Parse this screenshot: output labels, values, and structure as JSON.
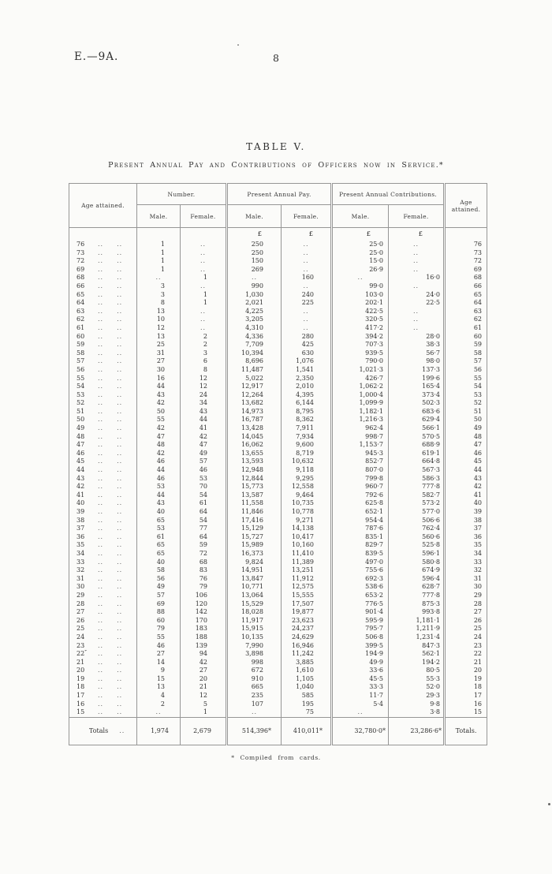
{
  "colors": {
    "paper": "#fbfbf9",
    "ink": "#2f2f2f",
    "border": "#969696"
  },
  "page": {
    "doc_ref": "E.—9A.",
    "page_number": "8"
  },
  "table": {
    "title": "TABLE V.",
    "subtitle": "Present Annual Pay and Contributions of Officers now in Service.*",
    "col_headers": {
      "age_attained_left": "Age attained.",
      "number": "Number.",
      "pay": "Present Annual Pay.",
      "contributions": "Present Annual Contributions.",
      "age_attained_right": "Age attained.",
      "male": "Male.",
      "female": "Female."
    },
    "currency_symbol": "£",
    "rows": [
      [
        "76",
        "1",
        "..",
        "250",
        "..",
        "25·0",
        "..",
        "76"
      ],
      [
        "73",
        "1",
        "..",
        "250",
        "..",
        "25·0",
        "..",
        "73"
      ],
      [
        "72",
        "1",
        "..",
        "150",
        "..",
        "15·0",
        "..",
        "72"
      ],
      [
        "69",
        "1",
        "..",
        "269",
        "..",
        "26·9",
        "..",
        "69"
      ],
      [
        "68",
        "..",
        "1",
        "..",
        "160",
        "..",
        "16·0",
        "68"
      ],
      [
        "66",
        "3",
        "..",
        "990",
        "..",
        "99·0",
        "..",
        "66"
      ],
      [
        "65",
        "3",
        "1",
        "1,030",
        "240",
        "103·0",
        "24·0",
        "65"
      ],
      [
        "64",
        "8",
        "1",
        "2,021",
        "225",
        "202·1",
        "22·5",
        "64"
      ],
      [
        "63",
        "13",
        "..",
        "4,225",
        "..",
        "422·5",
        "..",
        "63"
      ],
      [
        "62",
        "10",
        "..",
        "3,205",
        "..",
        "320·5",
        "..",
        "62"
      ],
      [
        "61",
        "12",
        "..",
        "4,310",
        "..",
        "417·2",
        "..",
        "61"
      ],
      [
        "60",
        "13",
        "2",
        "4,336",
        "280",
        "394·2",
        "28·0",
        "60"
      ],
      [
        "59",
        "25",
        "2",
        "7,709",
        "425",
        "707·3",
        "38·3",
        "59"
      ],
      [
        "58",
        "31",
        "3",
        "10,394",
        "630",
        "939·5",
        "56·7",
        "58"
      ],
      [
        "57",
        "27",
        "6",
        "8,696",
        "1,076",
        "790·0",
        "98·0",
        "57"
      ],
      [
        "56",
        "30",
        "8",
        "11,487",
        "1,541",
        "1,021·3",
        "137·3",
        "56"
      ],
      [
        "55",
        "16",
        "12",
        "5,022",
        "2,350",
        "426·7",
        "199·6",
        "55"
      ],
      [
        "54",
        "44",
        "12",
        "12,917",
        "2,010",
        "1,062·2",
        "165·4",
        "54"
      ],
      [
        "53",
        "43",
        "24",
        "12,264",
        "4,395",
        "1,000·4",
        "373·4",
        "53"
      ],
      [
        "52",
        "42",
        "34",
        "13,682",
        "6,144",
        "1,099·9",
        "502·3",
        "52"
      ],
      [
        "51",
        "50",
        "43",
        "14,973",
        "8,795",
        "1,182·1",
        "683·6",
        "51"
      ],
      [
        "50",
        "55",
        "44",
        "16,787",
        "8,362",
        "1,216·3",
        "629·4",
        "50"
      ],
      [
        "49",
        "42",
        "41",
        "13,428",
        "7,911",
        "962·4",
        "566·1",
        "49"
      ],
      [
        "48",
        "47",
        "42",
        "14,045",
        "7,934",
        "998·7",
        "570·5",
        "48"
      ],
      [
        "47",
        "48",
        "47",
        "16,062",
        "9,600",
        "1,153·7",
        "688·9",
        "47"
      ],
      [
        "46",
        "42",
        "49",
        "13,655",
        "8,719",
        "945·3",
        "619·1",
        "46"
      ],
      [
        "45",
        "46",
        "57",
        "13,593",
        "10,632",
        "852·7",
        "664·8",
        "45"
      ],
      [
        "44",
        "44",
        "46",
        "12,948",
        "9,118",
        "807·0",
        "567·3",
        "44"
      ],
      [
        "43",
        "46",
        "53",
        "12,844",
        "9,295",
        "799·8",
        "586·3",
        "43"
      ],
      [
        "42",
        "53",
        "70",
        "15,773",
        "12,558",
        "960·7",
        "777·8",
        "42"
      ],
      [
        "41",
        "44",
        "54",
        "13,587",
        "9,464",
        "792·6",
        "582·7",
        "41"
      ],
      [
        "40",
        "43",
        "61",
        "11,558",
        "10,735",
        "625·8",
        "573·2",
        "40"
      ],
      [
        "39",
        "40",
        "64",
        "11,846",
        "10,778",
        "652·1",
        "577·0",
        "39"
      ],
      [
        "38",
        "65",
        "54",
        "17,416",
        "9,271",
        "954·4",
        "506·6",
        "38"
      ],
      [
        "37",
        "53",
        "77",
        "15,129",
        "14,138",
        "787·6",
        "762·4",
        "37"
      ],
      [
        "36",
        "61",
        "64",
        "15,727",
        "10,417",
        "835·1",
        "560·6",
        "36"
      ],
      [
        "35",
        "65",
        "59",
        "15,989",
        "10,160",
        "829·7",
        "525·8",
        "35"
      ],
      [
        "34",
        "65",
        "72",
        "16,373",
        "11,410",
        "839·5",
        "596·1",
        "34"
      ],
      [
        "33",
        "40",
        "68",
        "9,824",
        "11,389",
        "497·0",
        "580·8",
        "33"
      ],
      [
        "32",
        "58",
        "83",
        "14,951",
        "13,251",
        "755·6",
        "674·9",
        "32"
      ],
      [
        "31",
        "56",
        "76",
        "13,847",
        "11,912",
        "692·3",
        "596·4",
        "31"
      ],
      [
        "30",
        "49",
        "79",
        "10,771",
        "12,575",
        "538·6",
        "628·7",
        "30"
      ],
      [
        "29",
        "57",
        "106",
        "13,064",
        "15,555",
        "653·2",
        "777·8",
        "29"
      ],
      [
        "28",
        "69",
        "120",
        "15,529",
        "17,507",
        "776·5",
        "875·3",
        "28"
      ],
      [
        "27",
        "88",
        "142",
        "18,028",
        "19,877",
        "901·4",
        "993·8",
        "27"
      ],
      [
        "26",
        "60",
        "170",
        "11,917",
        "23,623",
        "595·9",
        "1,181·1",
        "26"
      ],
      [
        "25",
        "79",
        "183",
        "15,915",
        "24,237",
        "795·7",
        "1,211·9",
        "25"
      ],
      [
        "24",
        "55",
        "188",
        "10,135",
        "24,629",
        "506·8",
        "1,231·4",
        "24"
      ],
      [
        "23",
        "46",
        "139",
        "7,990",
        "16,946",
        "399·5",
        "847·3",
        "23"
      ],
      [
        "22*",
        "27",
        "94",
        "3,898",
        "11,242",
        "194·9",
        "562·1",
        "22"
      ],
      [
        "21",
        "14",
        "42",
        "998",
        "3,885",
        "49·9",
        "194·2",
        "21"
      ],
      [
        "20",
        "9",
        "27",
        "672",
        "1,610",
        "33·6",
        "80·5",
        "20"
      ],
      [
        "19",
        "15",
        "20",
        "910",
        "1,105",
        "45·5",
        "55·3",
        "19"
      ],
      [
        "18",
        "13",
        "21",
        "665",
        "1,040",
        "33·3",
        "52·0",
        "18"
      ],
      [
        "17",
        "4",
        "12",
        "235",
        "585",
        "11·7",
        "29·3",
        "17"
      ],
      [
        "16",
        "2",
        "5",
        "107",
        "195",
        "5·4",
        "9·8",
        "16"
      ],
      [
        "15",
        "..",
        "1",
        "..",
        "75",
        "..",
        "3·8",
        "15"
      ]
    ],
    "totals": {
      "label": "Totals",
      "label_dots": "..",
      "male_number": "1,974",
      "female_number": "2,679",
      "male_pay": "514,396*",
      "female_pay": "410,011*",
      "male_contributions": "32,780·0*",
      "female_contributions": "23,286·6*",
      "label_right": "Totals."
    },
    "footnote": "* Compiled from cards."
  }
}
